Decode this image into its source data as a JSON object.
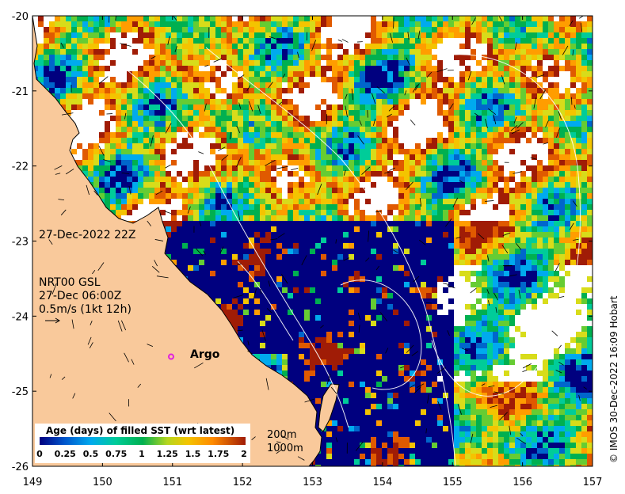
{
  "map": {
    "lon_range": [
      149,
      157
    ],
    "lat_range": [
      -26,
      -20
    ],
    "x_ticks": [
      "149",
      "150",
      "151",
      "152",
      "153",
      "154",
      "155",
      "156",
      "157"
    ],
    "y_ticks": [
      "-20",
      "-21",
      "-22",
      "-23",
      "-24",
      "-25",
      "-26"
    ],
    "land_color": "#f9c99b",
    "ocean_no_data_color": "#ffffff"
  },
  "annotations": {
    "datetime": "27-Dec-2022 22Z",
    "current_model": "NRT00 GSL",
    "current_time": "27-Dec 06:00Z",
    "current_scale": "0.5m/s (1kt 12h)",
    "argo_label": "Argo",
    "contour_200": "200m",
    "contour_1000": "1000m",
    "credit": "© IMOS 30-Dec-2022 16:09 Hobart"
  },
  "legend": {
    "title": "Age (days) of filled SST (wrt latest)",
    "ticks": [
      "0",
      "0.25",
      "0.5",
      "0.75",
      "1",
      "1.25",
      "1.5",
      "1.75",
      "2"
    ],
    "colors": [
      "#00007f",
      "#0066cc",
      "#00aaee",
      "#00cc99",
      "#00b050",
      "#66cc33",
      "#d8dc1a",
      "#f4c400",
      "#ff9d00",
      "#e05a00",
      "#a01c06"
    ]
  },
  "argo_float": {
    "lon": 150.98,
    "lat": -24.54,
    "color": "#e020e0"
  }
}
